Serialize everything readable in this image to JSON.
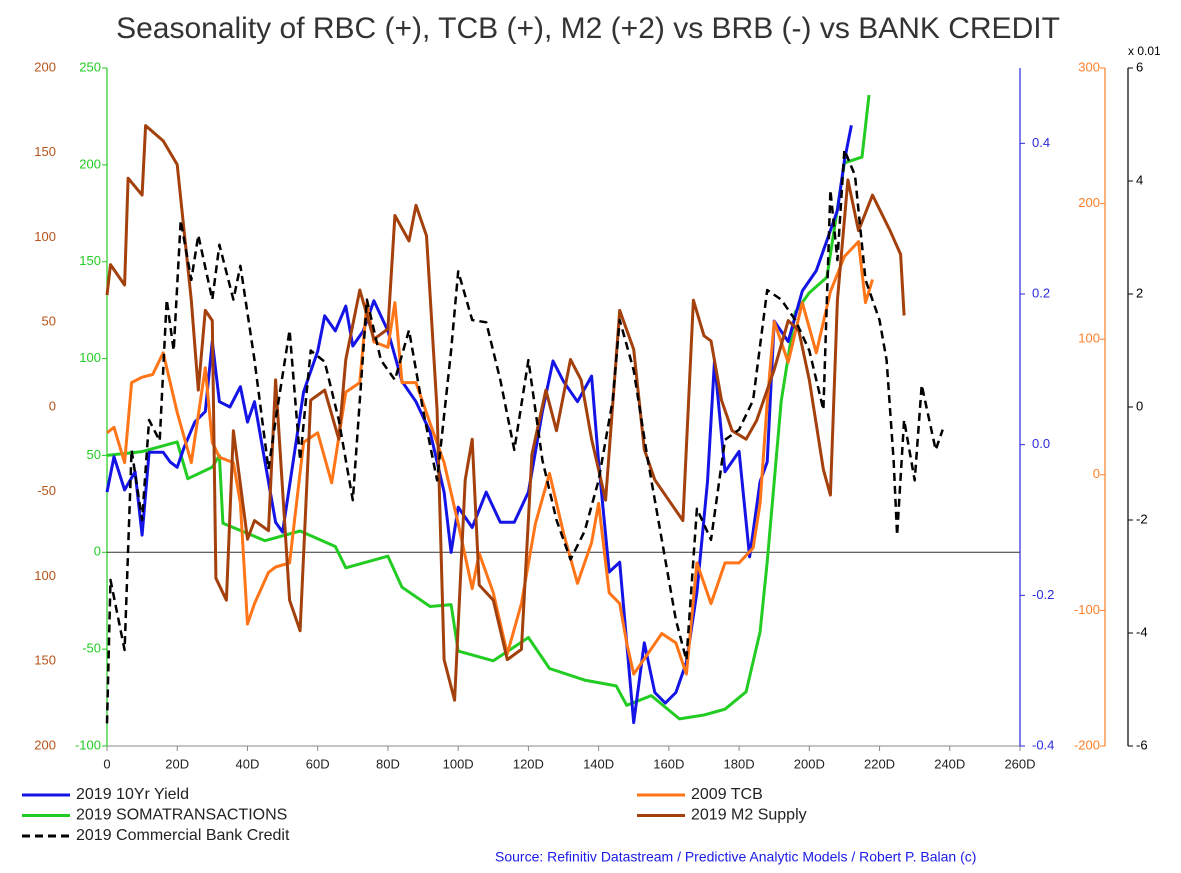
{
  "chart_data": {
    "type": "line",
    "title": "Seasonality of RBC (+), TCB (+), M2 (+2) vs BRB (-) vs BANK CREDIT",
    "source": "Source: Refinitiv Datastream / Predictive Analytic Models / Robert P. Balan (c)",
    "xlim": [
      0,
      260
    ],
    "xticks": [
      0,
      {
        "value": 20,
        "label": "20D"
      },
      {
        "value": 40,
        "label": "40D"
      },
      {
        "value": 60,
        "label": "60D"
      },
      {
        "value": 80,
        "label": "80D"
      },
      {
        "value": 100,
        "label": "100D"
      },
      {
        "value": 120,
        "label": "120D"
      },
      {
        "value": 140,
        "label": "140D"
      },
      {
        "value": 160,
        "label": "160D"
      },
      {
        "value": 180,
        "label": "180D"
      },
      {
        "value": 200,
        "label": "200D"
      },
      {
        "value": 220,
        "label": "220D"
      },
      {
        "value": 240,
        "label": "240D"
      },
      {
        "value": 260,
        "label": "260D"
      }
    ],
    "series": [
      {
        "name": "2019 10Yr Yield",
        "color": "#1414e6",
        "tick_color": "#2a2ae0",
        "ylim": [
          -0.4,
          0.5
        ],
        "yticks": [
          0.4,
          0.2,
          {
            "value": 0,
            "label": "0.0"
          },
          -0.2,
          -0.4
        ],
        "x": [
          0,
          2,
          5,
          8,
          10,
          12,
          16,
          18,
          20,
          22,
          25,
          28,
          30,
          32,
          35,
          38,
          40,
          42,
          45,
          48,
          50,
          53,
          56,
          60,
          62,
          65,
          68,
          70,
          73,
          76,
          80,
          84,
          88,
          92,
          96,
          98,
          100,
          104,
          108,
          112,
          116,
          120,
          124,
          127,
          130,
          134,
          138,
          140,
          143,
          146,
          148,
          150,
          153,
          156,
          159,
          162,
          165,
          168,
          171,
          173,
          176,
          180,
          183,
          186,
          188,
          190,
          194,
          198,
          202,
          205,
          208,
          210,
          212
        ],
        "values": [
          -0.063,
          -0.016,
          -0.06,
          -0.036,
          -0.12,
          -0.01,
          -0.01,
          -0.023,
          -0.03,
          -0.003,
          0.03,
          0.044,
          0.137,
          0.057,
          0.05,
          0.077,
          0.03,
          0.057,
          -0.023,
          -0.103,
          -0.116,
          -0.023,
          0.07,
          0.124,
          0.171,
          0.151,
          0.184,
          0.131,
          0.151,
          0.191,
          0.151,
          0.084,
          0.057,
          0.017,
          -0.063,
          -0.143,
          -0.083,
          -0.11,
          -0.063,
          -0.103,
          -0.103,
          -0.063,
          0.044,
          0.111,
          0.084,
          0.057,
          0.091,
          -0.023,
          -0.169,
          -0.156,
          -0.263,
          -0.369,
          -0.263,
          -0.329,
          -0.343,
          -0.329,
          -0.289,
          -0.196,
          -0.049,
          0.111,
          -0.036,
          -0.009,
          -0.149,
          -0.049,
          -0.023,
          0.164,
          0.137,
          0.204,
          0.231,
          0.271,
          0.311,
          0.377,
          0.424
        ]
      },
      {
        "name": "2009 TCB",
        "color": "#ff7518",
        "tick_color": "#ff7f27",
        "ylim": [
          -200,
          300
        ],
        "yticks": [
          300,
          200,
          100,
          0,
          -100,
          -200
        ],
        "x": [
          0,
          2,
          5,
          7,
          10,
          13,
          16,
          18,
          20,
          24,
          28,
          30,
          32,
          36,
          38,
          40,
          42,
          46,
          48,
          52,
          56,
          60,
          64,
          68,
          72,
          74,
          76,
          80,
          82,
          84,
          88,
          92,
          96,
          100,
          104,
          106,
          110,
          114,
          118,
          122,
          126,
          130,
          134,
          138,
          140,
          143,
          146,
          148,
          150,
          154,
          158,
          162,
          165,
          168,
          172,
          176,
          180,
          184,
          186,
          188,
          190,
          194,
          198,
          202,
          206,
          210,
          214,
          216,
          218
        ],
        "values": [
          31,
          35,
          9,
          68,
          72,
          74,
          90,
          68,
          46,
          9,
          79,
          24,
          13,
          9,
          -21,
          -110,
          -95,
          -72,
          -68,
          -65,
          24,
          31,
          -6,
          61,
          68,
          127,
          98,
          94,
          127,
          68,
          68,
          38,
          9,
          -36,
          -84,
          -58,
          -87,
          -132,
          -95,
          -36,
          1,
          -43,
          -80,
          -50,
          -21,
          -87,
          -95,
          -124,
          -147,
          -132,
          -117,
          -124,
          -147,
          -65,
          -95,
          -65,
          -65,
          -54,
          -21,
          53,
          113,
          83,
          127,
          90,
          135,
          161,
          172,
          127,
          144
        ]
      },
      {
        "name": "2019 SOMATRANSACTIONS",
        "color": "#22cc22",
        "tick_color": "#22cc22",
        "ylim": [
          -100,
          250
        ],
        "yticks": [
          250,
          200,
          150,
          100,
          50,
          0,
          -50,
          -100
        ],
        "hline": 0,
        "x": [
          0,
          10,
          20,
          23,
          30,
          32,
          33,
          45,
          55,
          65,
          68,
          80,
          84,
          92,
          98,
          100,
          110,
          120,
          126,
          136,
          145,
          148,
          155,
          163,
          170,
          176,
          182,
          186,
          188,
          192,
          196,
          200,
          205,
          210,
          215,
          217
        ],
        "values": [
          50,
          52,
          57,
          38,
          44,
          50,
          15,
          6,
          11,
          3,
          -8,
          -2,
          -18,
          -28,
          -27,
          -51,
          -56,
          -44,
          -60,
          -66,
          -69,
          -79,
          -74,
          -86,
          -84,
          -81,
          -72,
          -41,
          -5,
          78,
          124,
          134,
          142,
          201,
          204,
          236
        ]
      },
      {
        "name": "2019 M2 Supply",
        "color": "#a3400c",
        "tick_color": "#b5531a",
        "ylim": [
          -200,
          200
        ],
        "yticks": [
          200,
          150,
          100,
          50,
          0,
          -50,
          {
            "value": -100,
            "label": "100"
          },
          {
            "value": -150,
            "label": "150"
          },
          {
            "value": -200,
            "label": "200"
          }
        ],
        "x": [
          0,
          1,
          5,
          6,
          10,
          11,
          16,
          20,
          24,
          26,
          28,
          30,
          31,
          34,
          36,
          40,
          42,
          46,
          48,
          52,
          55,
          58,
          62,
          66,
          68,
          72,
          76,
          80,
          82,
          86,
          88,
          91,
          94,
          96,
          99,
          102,
          104,
          106,
          110,
          114,
          118,
          121,
          125,
          128,
          132,
          135,
          138,
          142,
          146,
          150,
          153,
          156,
          160,
          164,
          167,
          170,
          172,
          175,
          178,
          182,
          185,
          190,
          194,
          197,
          200,
          204,
          206,
          208,
          211,
          214,
          218,
          223,
          226,
          227
        ],
        "values": [
          66,
          84,
          72,
          135,
          125,
          166,
          157,
          143,
          63,
          10,
          57,
          51,
          -101,
          -114,
          -14,
          -78,
          -67,
          -73,
          16,
          -114,
          -132,
          4,
          10,
          -19,
          28,
          69,
          40,
          46,
          113,
          98,
          119,
          101,
          -2,
          -149,
          -173,
          -43,
          -19,
          -105,
          -114,
          -149,
          -143,
          -28,
          10,
          -14,
          28,
          16,
          -19,
          -55,
          57,
          34,
          -25,
          -43,
          -55,
          -67,
          63,
          42,
          39,
          4,
          -14,
          -19,
          -8,
          22,
          51,
          45,
          16,
          -37,
          -52,
          63,
          134,
          104,
          125,
          104,
          90,
          54
        ]
      },
      {
        "name": "2019 Commercial Bank Credit",
        "color": "#000000",
        "tick_color": "#000000",
        "dashed": true,
        "ylim": [
          -6,
          6
        ],
        "yticks": [
          6,
          4,
          2,
          0,
          -2,
          -4,
          -6
        ],
        "unit_label": "x 0.01",
        "x": [
          0,
          1,
          5,
          7,
          10,
          12,
          15,
          17,
          19,
          21,
          24,
          26,
          30,
          32,
          36,
          38,
          42,
          46,
          48,
          52,
          55,
          58,
          62,
          66,
          70,
          74,
          78,
          82,
          86,
          90,
          94,
          98,
          100,
          104,
          108,
          112,
          116,
          120,
          124,
          128,
          132,
          136,
          140,
          144,
          146,
          150,
          154,
          158,
          162,
          165,
          168,
          172,
          176,
          180,
          184,
          188,
          192,
          196,
          200,
          204,
          206,
          208,
          210,
          213,
          216,
          220,
          222,
          224,
          225,
          227,
          230,
          232,
          236,
          238
        ],
        "values": [
          -5.6,
          -3.06,
          -4.3,
          -0.76,
          -2,
          -0.23,
          -0.6,
          1.9,
          1,
          3.3,
          2.25,
          3.04,
          1.9,
          2.87,
          1.9,
          2.5,
          0.83,
          -1.1,
          -0.23,
          1.36,
          -0.94,
          1,
          0.8,
          -0.23,
          -1.65,
          1.9,
          0.83,
          0.48,
          1.36,
          -0.05,
          -1.3,
          1,
          2.4,
          1.54,
          1.5,
          0.48,
          -0.76,
          0.83,
          -0.94,
          -2,
          -2.7,
          -2.2,
          -1.3,
          0.12,
          1.54,
          0.65,
          -0.94,
          -2.35,
          -3.77,
          -4.48,
          -1.8,
          -2.35,
          -0.58,
          -0.4,
          0.12,
          2.07,
          1.9,
          1.54,
          1,
          -0.05,
          3.84,
          2.6,
          4.55,
          4.1,
          2.25,
          1.54,
          0.83,
          -0.94,
          -2.27,
          -0.23,
          -1.3,
          0.39,
          -0.76,
          -0.4
        ]
      }
    ]
  }
}
